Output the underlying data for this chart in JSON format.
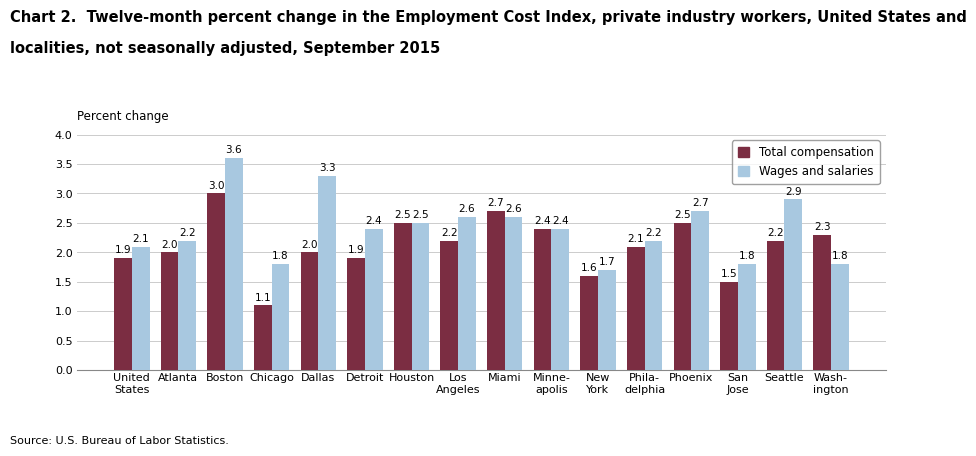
{
  "title_line1": "Chart 2.  Twelve-month percent change in the Employment Cost Index, private industry workers, United States and",
  "title_line2": "localities, not seasonally adjusted, September 2015",
  "ylabel": "Percent change",
  "source": "Source: U.S. Bureau of Labor Statistics.",
  "categories": [
    "United\nStates",
    "Atlanta",
    "Boston",
    "Chicago",
    "Dallas",
    "Detroit",
    "Houston",
    "Los\nAngeles",
    "Miami",
    "Minne-\napolis",
    "New\nYork",
    "Phila-\ndelphia",
    "Phoenix",
    "San\nJose",
    "Seattle",
    "Wash-\nington"
  ],
  "total_compensation": [
    1.9,
    2.0,
    3.0,
    1.1,
    2.0,
    1.9,
    2.5,
    2.2,
    2.7,
    2.4,
    1.6,
    2.1,
    2.5,
    1.5,
    2.2,
    2.3
  ],
  "wages_and_salaries": [
    2.1,
    2.2,
    3.6,
    1.8,
    3.3,
    2.4,
    2.5,
    2.6,
    2.6,
    2.4,
    1.7,
    2.2,
    2.7,
    1.8,
    2.9,
    1.8
  ],
  "total_comp_color": "#7B2D42",
  "wages_color": "#A8C8E0",
  "bar_width": 0.38,
  "ylim": [
    0,
    4.0
  ],
  "yticks": [
    0.0,
    0.5,
    1.0,
    1.5,
    2.0,
    2.5,
    3.0,
    3.5,
    4.0
  ],
  "legend_labels": [
    "Total compensation",
    "Wages and salaries"
  ],
  "title_fontsize": 10.5,
  "ylabel_fontsize": 8.5,
  "tick_fontsize": 8,
  "value_fontsize": 7.5,
  "source_fontsize": 8,
  "legend_fontsize": 8.5
}
